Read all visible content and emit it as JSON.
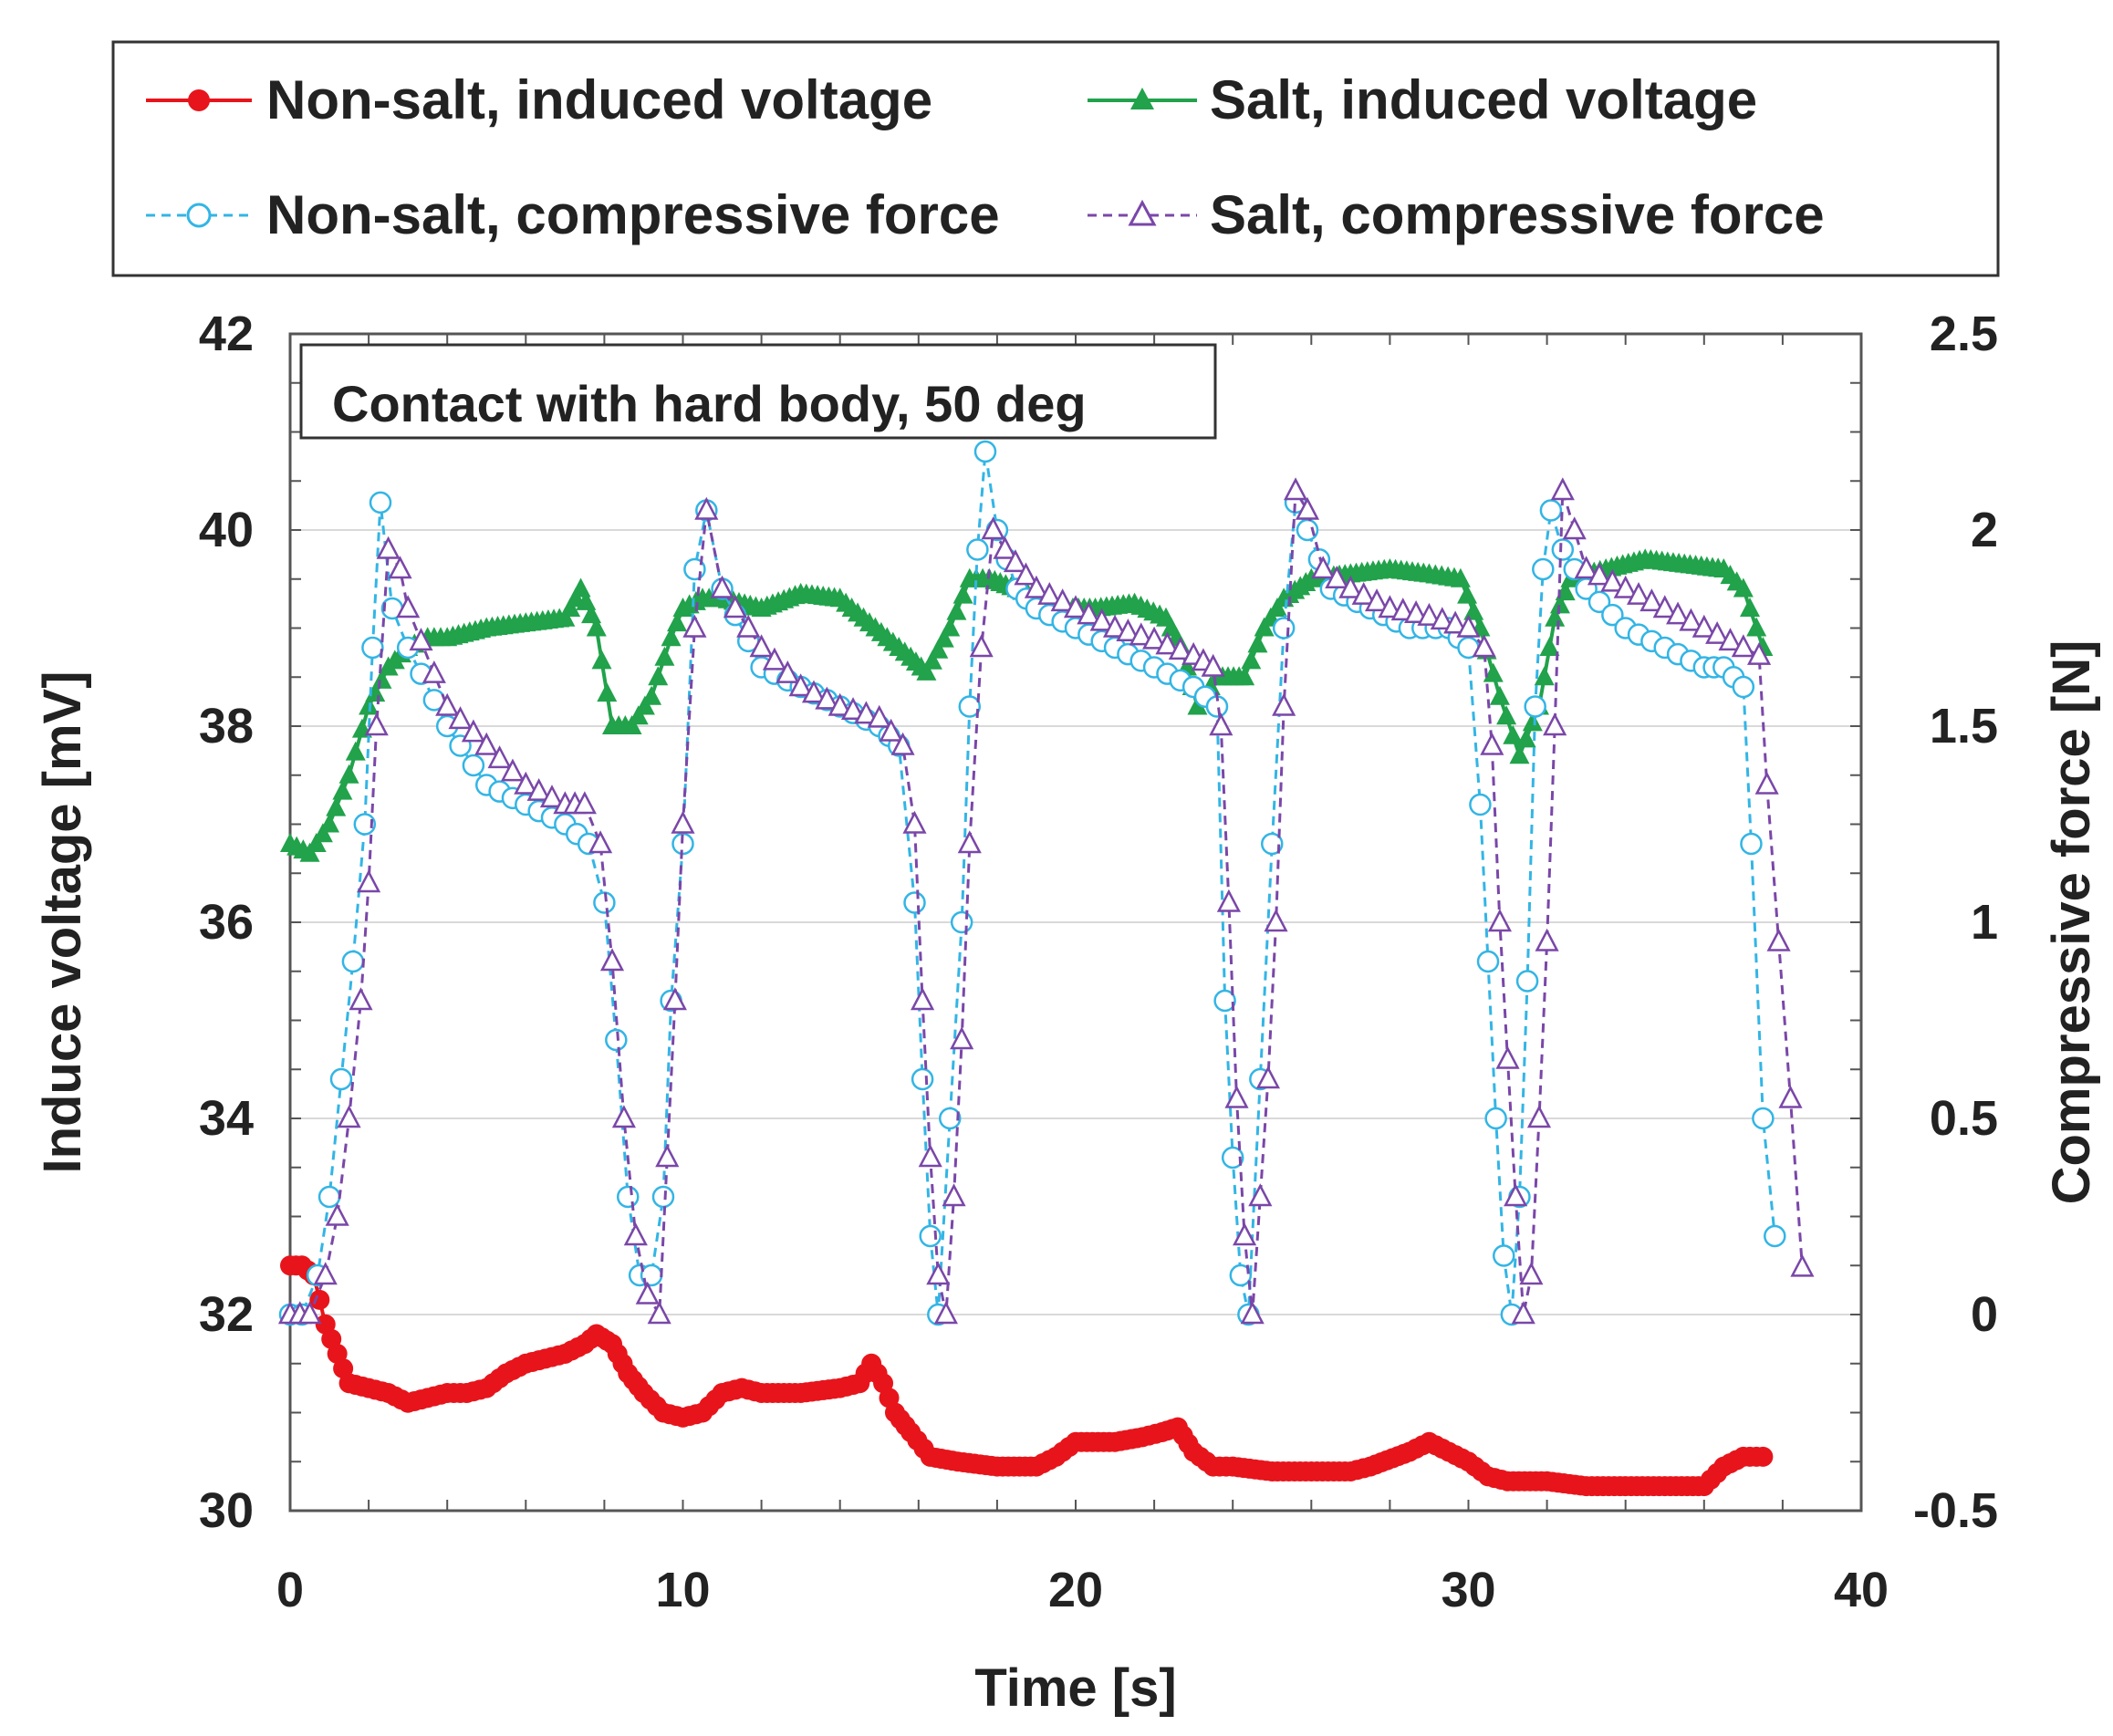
{
  "chart_data": {
    "type": "line",
    "annotation": "Contact with hard body,  50 deg",
    "xlabel": "Time   [s]",
    "ylabel_left": "Induce voltage  [mV]",
    "ylabel_right": "Compressive force  [N]",
    "xlim": [
      0,
      40
    ],
    "ylim_left": [
      30,
      42
    ],
    "ylim_right": [
      -0.5,
      2.5
    ],
    "x_ticks": [
      "0",
      "10",
      "20",
      "30",
      "40"
    ],
    "y_left_ticks": [
      "30",
      "32",
      "34",
      "36",
      "38",
      "40",
      "42"
    ],
    "y_right_ticks": [
      "-0.5",
      "0",
      "0.5",
      "1",
      "1.5",
      "2",
      "2.5"
    ],
    "grid": true,
    "legend": [
      "Non-salt, induced voltage",
      "Salt, induced voltage",
      "Non-salt, compressive force",
      "Salt, compressive force"
    ],
    "series": [
      {
        "name": "Non-salt, induced voltage",
        "axis": "left",
        "color": "#e8141b",
        "marker": "filled-circle",
        "line": "solid",
        "points": [
          [
            0,
            32.5
          ],
          [
            0.3,
            32.5
          ],
          [
            0.6,
            32.4
          ],
          [
            0.9,
            31.9
          ],
          [
            1.2,
            31.6
          ],
          [
            1.5,
            31.3
          ],
          [
            2,
            31.25
          ],
          [
            2.5,
            31.2
          ],
          [
            3,
            31.1
          ],
          [
            3.5,
            31.15
          ],
          [
            4,
            31.2
          ],
          [
            4.5,
            31.2
          ],
          [
            5,
            31.25
          ],
          [
            5.5,
            31.4
          ],
          [
            6,
            31.5
          ],
          [
            6.5,
            31.55
          ],
          [
            7,
            31.6
          ],
          [
            7.5,
            31.7
          ],
          [
            7.8,
            31.8
          ],
          [
            8.2,
            31.7
          ],
          [
            8.6,
            31.4
          ],
          [
            9,
            31.2
          ],
          [
            9.5,
            31.0
          ],
          [
            10,
            30.95
          ],
          [
            10.5,
            31.0
          ],
          [
            11,
            31.2
          ],
          [
            11.5,
            31.25
          ],
          [
            12,
            31.2
          ],
          [
            13,
            31.2
          ],
          [
            14,
            31.25
          ],
          [
            14.5,
            31.3
          ],
          [
            14.8,
            31.5
          ],
          [
            15.1,
            31.3
          ],
          [
            15.4,
            31.0
          ],
          [
            15.8,
            30.8
          ],
          [
            16.3,
            30.55
          ],
          [
            17,
            30.5
          ],
          [
            18,
            30.45
          ],
          [
            19,
            30.45
          ],
          [
            19.5,
            30.55
          ],
          [
            20,
            30.7
          ],
          [
            21,
            30.7
          ],
          [
            21.7,
            30.75
          ],
          [
            22.2,
            30.8
          ],
          [
            22.6,
            30.85
          ],
          [
            23,
            30.6
          ],
          [
            23.5,
            30.45
          ],
          [
            24,
            30.45
          ],
          [
            25,
            30.4
          ],
          [
            26,
            30.4
          ],
          [
            27,
            30.4
          ],
          [
            27.5,
            30.45
          ],
          [
            28.5,
            30.6
          ],
          [
            29,
            30.7
          ],
          [
            29.5,
            30.6
          ],
          [
            30,
            30.5
          ],
          [
            30.5,
            30.35
          ],
          [
            31,
            30.3
          ],
          [
            32,
            30.3
          ],
          [
            33,
            30.25
          ],
          [
            34,
            30.25
          ],
          [
            35,
            30.25
          ],
          [
            36,
            30.25
          ],
          [
            36.5,
            30.45
          ],
          [
            37,
            30.55
          ],
          [
            37.5,
            30.55
          ]
        ]
      },
      {
        "name": "Salt, induced voltage",
        "axis": "left",
        "color": "#21a24b",
        "marker": "filled-triangle",
        "line": "solid",
        "points": [
          [
            0,
            36.8
          ],
          [
            0.5,
            36.7
          ],
          [
            1,
            37.0
          ],
          [
            1.5,
            37.5
          ],
          [
            2,
            38.2
          ],
          [
            2.5,
            38.6
          ],
          [
            3,
            38.8
          ],
          [
            3.5,
            38.9
          ],
          [
            4,
            38.9
          ],
          [
            5,
            39.0
          ],
          [
            6,
            39.05
          ],
          [
            7,
            39.1
          ],
          [
            7.4,
            39.4
          ],
          [
            7.8,
            39.0
          ],
          [
            8.2,
            38.0
          ],
          [
            8.7,
            38.0
          ],
          [
            9.2,
            38.3
          ],
          [
            9.7,
            38.9
          ],
          [
            10,
            39.2
          ],
          [
            10.5,
            39.3
          ],
          [
            11,
            39.3
          ],
          [
            12,
            39.2
          ],
          [
            13,
            39.35
          ],
          [
            14,
            39.3
          ],
          [
            14.6,
            39.1
          ],
          [
            15.2,
            38.9
          ],
          [
            15.8,
            38.7
          ],
          [
            16.2,
            38.55
          ],
          [
            16.8,
            39.0
          ],
          [
            17.3,
            39.5
          ],
          [
            17.8,
            39.5
          ],
          [
            18.5,
            39.4
          ],
          [
            19.5,
            39.2
          ],
          [
            20.5,
            39.2
          ],
          [
            21.5,
            39.25
          ],
          [
            22.3,
            39.1
          ],
          [
            22.7,
            38.8
          ],
          [
            23.1,
            38.2
          ],
          [
            23.6,
            38.5
          ],
          [
            24.3,
            38.5
          ],
          [
            24.8,
            39.0
          ],
          [
            25.3,
            39.3
          ],
          [
            26,
            39.5
          ],
          [
            27,
            39.55
          ],
          [
            28,
            39.6
          ],
          [
            29,
            39.55
          ],
          [
            29.8,
            39.5
          ],
          [
            30.3,
            39.0
          ],
          [
            30.8,
            38.3
          ],
          [
            31.3,
            37.7
          ],
          [
            31.8,
            38.2
          ],
          [
            32.2,
            39.1
          ],
          [
            32.6,
            39.5
          ],
          [
            33.5,
            39.6
          ],
          [
            34.5,
            39.7
          ],
          [
            35.5,
            39.65
          ],
          [
            36.5,
            39.6
          ],
          [
            37,
            39.4
          ],
          [
            37.5,
            38.8
          ]
        ]
      },
      {
        "name": "Non-salt, compressive force",
        "axis": "right",
        "color": "#33b5e5",
        "marker": "open-circle",
        "line": "dashed",
        "points": [
          [
            0,
            0
          ],
          [
            0.3,
            0
          ],
          [
            0.7,
            0.1
          ],
          [
            1,
            0.3
          ],
          [
            1.3,
            0.6
          ],
          [
            1.6,
            0.9
          ],
          [
            1.9,
            1.25
          ],
          [
            2.1,
            1.7
          ],
          [
            2.3,
            2.07
          ],
          [
            2.6,
            1.8
          ],
          [
            3,
            1.7
          ],
          [
            4,
            1.5
          ],
          [
            5,
            1.35
          ],
          [
            6,
            1.3
          ],
          [
            7,
            1.25
          ],
          [
            7.6,
            1.2
          ],
          [
            8,
            1.05
          ],
          [
            8.3,
            0.7
          ],
          [
            8.6,
            0.3
          ],
          [
            8.9,
            0.1
          ],
          [
            9.2,
            0.1
          ],
          [
            9.5,
            0.3
          ],
          [
            9.7,
            0.8
          ],
          [
            10,
            1.2
          ],
          [
            10.3,
            1.9
          ],
          [
            10.6,
            2.05
          ],
          [
            11,
            1.85
          ],
          [
            12,
            1.65
          ],
          [
            13,
            1.6
          ],
          [
            14,
            1.55
          ],
          [
            15,
            1.5
          ],
          [
            15.5,
            1.45
          ],
          [
            15.9,
            1.05
          ],
          [
            16.1,
            0.6
          ],
          [
            16.3,
            0.2
          ],
          [
            16.5,
            0
          ],
          [
            16.8,
            0.5
          ],
          [
            17.1,
            1.0
          ],
          [
            17.3,
            1.55
          ],
          [
            17.5,
            1.95
          ],
          [
            17.7,
            2.2
          ],
          [
            18,
            2.0
          ],
          [
            18.5,
            1.85
          ],
          [
            19,
            1.8
          ],
          [
            20,
            1.75
          ],
          [
            21,
            1.7
          ],
          [
            22,
            1.65
          ],
          [
            23,
            1.6
          ],
          [
            23.6,
            1.55
          ],
          [
            23.8,
            0.8
          ],
          [
            24,
            0.4
          ],
          [
            24.2,
            0.1
          ],
          [
            24.4,
            0
          ],
          [
            24.7,
            0.6
          ],
          [
            25,
            1.2
          ],
          [
            25.3,
            1.75
          ],
          [
            25.6,
            2.07
          ],
          [
            25.9,
            2.0
          ],
          [
            26.5,
            1.85
          ],
          [
            27.5,
            1.8
          ],
          [
            28.5,
            1.75
          ],
          [
            29.5,
            1.75
          ],
          [
            30,
            1.7
          ],
          [
            30.3,
            1.3
          ],
          [
            30.5,
            0.9
          ],
          [
            30.7,
            0.5
          ],
          [
            30.9,
            0.15
          ],
          [
            31.1,
            0
          ],
          [
            31.3,
            0.3
          ],
          [
            31.5,
            0.85
          ],
          [
            31.7,
            1.55
          ],
          [
            31.9,
            1.9
          ],
          [
            32.1,
            2.05
          ],
          [
            32.4,
            1.95
          ],
          [
            33,
            1.85
          ],
          [
            34,
            1.75
          ],
          [
            35,
            1.7
          ],
          [
            36,
            1.65
          ],
          [
            36.5,
            1.65
          ],
          [
            37,
            1.6
          ],
          [
            37.2,
            1.2
          ],
          [
            37.5,
            0.5
          ],
          [
            37.8,
            0.2
          ]
        ]
      },
      {
        "name": "Salt, compressive force",
        "axis": "right",
        "color": "#7a47a8",
        "marker": "open-triangle",
        "line": "dashed",
        "points": [
          [
            0,
            0
          ],
          [
            0.5,
            0
          ],
          [
            0.9,
            0.1
          ],
          [
            1.2,
            0.25
          ],
          [
            1.5,
            0.5
          ],
          [
            1.8,
            0.8
          ],
          [
            2,
            1.1
          ],
          [
            2.2,
            1.5
          ],
          [
            2.5,
            1.95
          ],
          [
            2.8,
            1.9
          ],
          [
            3,
            1.8
          ],
          [
            4,
            1.55
          ],
          [
            5,
            1.45
          ],
          [
            6,
            1.35
          ],
          [
            7,
            1.3
          ],
          [
            7.5,
            1.3
          ],
          [
            7.9,
            1.2
          ],
          [
            8.2,
            0.9
          ],
          [
            8.5,
            0.5
          ],
          [
            8.8,
            0.2
          ],
          [
            9.1,
            0.05
          ],
          [
            9.4,
            0
          ],
          [
            9.6,
            0.4
          ],
          [
            9.8,
            0.8
          ],
          [
            10,
            1.25
          ],
          [
            10.3,
            1.75
          ],
          [
            10.6,
            2.05
          ],
          [
            11,
            1.85
          ],
          [
            12,
            1.7
          ],
          [
            13,
            1.6
          ],
          [
            14,
            1.55
          ],
          [
            15,
            1.52
          ],
          [
            15.6,
            1.45
          ],
          [
            15.9,
            1.25
          ],
          [
            16.1,
            0.8
          ],
          [
            16.3,
            0.4
          ],
          [
            16.5,
            0.1
          ],
          [
            16.7,
            0
          ],
          [
            16.9,
            0.3
          ],
          [
            17.1,
            0.7
          ],
          [
            17.3,
            1.2
          ],
          [
            17.6,
            1.7
          ],
          [
            17.9,
            2.0
          ],
          [
            18.2,
            1.95
          ],
          [
            19,
            1.85
          ],
          [
            20,
            1.8
          ],
          [
            21,
            1.75
          ],
          [
            22,
            1.72
          ],
          [
            23,
            1.68
          ],
          [
            23.5,
            1.65
          ],
          [
            23.7,
            1.5
          ],
          [
            23.9,
            1.05
          ],
          [
            24.1,
            0.55
          ],
          [
            24.3,
            0.2
          ],
          [
            24.5,
            0
          ],
          [
            24.7,
            0.3
          ],
          [
            24.9,
            0.6
          ],
          [
            25.1,
            1.0
          ],
          [
            25.3,
            1.55
          ],
          [
            25.6,
            2.1
          ],
          [
            25.9,
            2.05
          ],
          [
            26.3,
            1.9
          ],
          [
            27,
            1.85
          ],
          [
            28,
            1.8
          ],
          [
            29,
            1.78
          ],
          [
            30,
            1.75
          ],
          [
            30.4,
            1.7
          ],
          [
            30.6,
            1.45
          ],
          [
            30.8,
            1.0
          ],
          [
            31,
            0.65
          ],
          [
            31.2,
            0.3
          ],
          [
            31.4,
            0
          ],
          [
            31.6,
            0.1
          ],
          [
            31.8,
            0.5
          ],
          [
            32,
            0.95
          ],
          [
            32.2,
            1.5
          ],
          [
            32.4,
            2.1
          ],
          [
            32.7,
            2.0
          ],
          [
            33,
            1.9
          ],
          [
            34,
            1.85
          ],
          [
            35,
            1.8
          ],
          [
            36,
            1.75
          ],
          [
            37,
            1.7
          ],
          [
            37.4,
            1.68
          ],
          [
            37.6,
            1.35
          ],
          [
            37.9,
            0.95
          ],
          [
            38.2,
            0.55
          ],
          [
            38.5,
            0.12
          ]
        ]
      }
    ]
  }
}
